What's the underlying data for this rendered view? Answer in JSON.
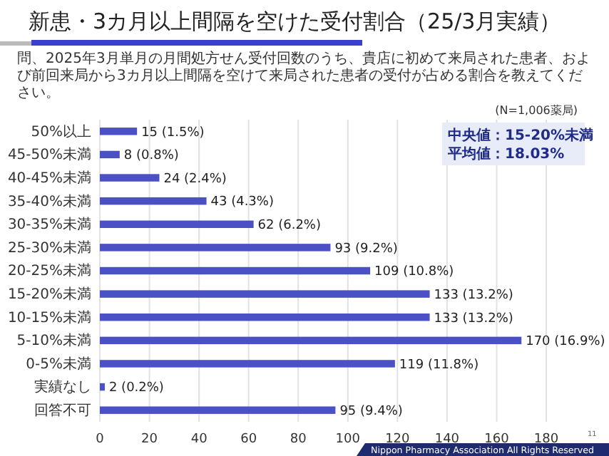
{
  "chart_data": {
    "type": "bar",
    "orientation": "horizontal",
    "title": "新患・3カ月以上間隔を空けた受付割合（25/3月実績）",
    "subtitle": "問、2025年3月単月の月間処方せん受付回数のうち、貴店に初めて来局された患者、および前回来局から3カ月以上間隔を空けて来局された患者の受付が占める割合を教えてください。",
    "categories": [
      "50%以上",
      "45-50%未満",
      "40-45%未満",
      "35-40%未満",
      "30-35%未満",
      "25-30%未満",
      "20-25%未満",
      "15-20%未満",
      "10-15%未満",
      "5-10%未満",
      "0-5%未満",
      "実績なし",
      "回答不可"
    ],
    "values": [
      15,
      8,
      24,
      43,
      62,
      93,
      109,
      133,
      133,
      170,
      119,
      2,
      95
    ],
    "value_labels": [
      "15 (1.5%)",
      "8 (0.8%)",
      "24 (2.4%)",
      "43 (4.3%)",
      "62 (6.2%)",
      "93 (9.2%)",
      "109 (10.8%)",
      "133 (13.2%)",
      "133 (13.2%)",
      "170 (16.9%)",
      "119 (11.8%)",
      "2 (0.2%)",
      "95 (9.4%)"
    ],
    "color": "#4b50c4",
    "xlim": [
      0,
      180
    ],
    "xticks": [
      0,
      20,
      40,
      60,
      80,
      100,
      120,
      140,
      160,
      180
    ],
    "grid": "x",
    "annotations": [
      "(N=1,006薬局)",
      "中央値：15-20%未満",
      "平均値：18.03%",
      "Nippon Pharmacy Association All Rights Reserved",
      "11"
    ]
  }
}
